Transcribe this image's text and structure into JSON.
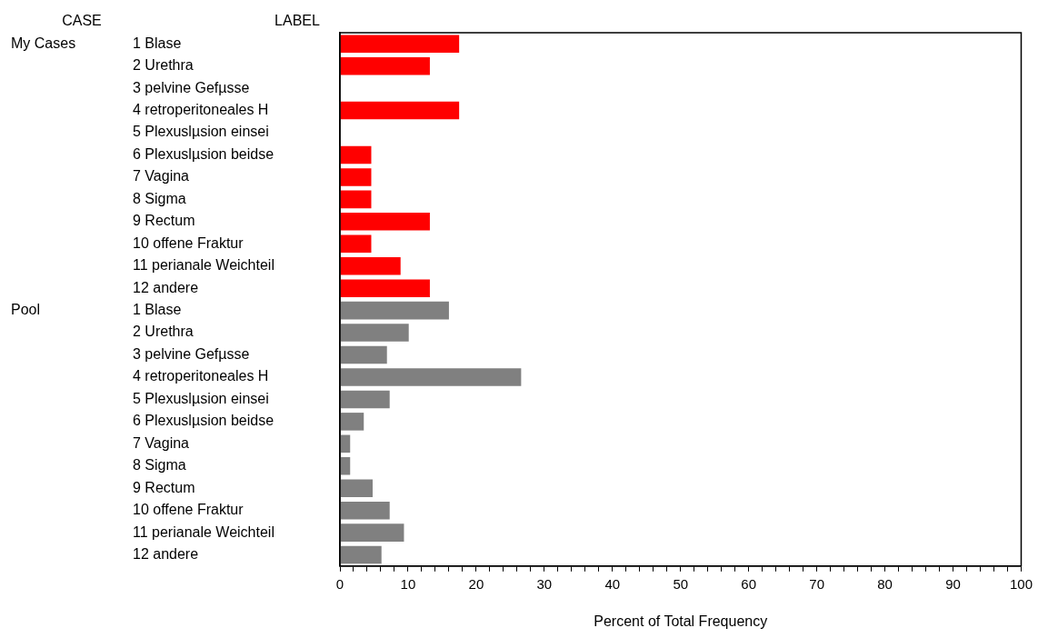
{
  "chart_data": {
    "type": "bar",
    "orientation": "horizontal",
    "xlabel": "Percent of Total Frequency",
    "ylabel": "LABEL",
    "legend_title": "CASE",
    "categories": [
      "1 Blase",
      "2 Urethra",
      "3 pelvine Gefµsse",
      "4 retroperitoneales H",
      "5 Plexuslµsion einsei",
      "6 Plexuslµsion beidse",
      "7 Vagina",
      "8 Sigma",
      "9 Rectum",
      "10 offene Fraktur",
      "11 perianale Weichteil",
      "12 andere",
      "1 Blase",
      "2 Urethra",
      "3 pelvine Gefµsse",
      "4 retroperitoneales H",
      "5 Plexuslµsion einsei",
      "6 Plexuslµsion beidse",
      "7 Vagina",
      "8 Sigma",
      "9 Rectum",
      "10 offene Fraktur",
      "11 perianale Weichteil",
      "12 andere"
    ],
    "series": [
      {
        "color": "#ff0000",
        "values": [
          17.5,
          13.2,
          0,
          17.5,
          0,
          4.6,
          4.6,
          4.6,
          13.2,
          4.6,
          8.9,
          13.2,
          null,
          null,
          null,
          null,
          null,
          null,
          null,
          null,
          null,
          null,
          null,
          null
        ]
      },
      {
        "color": "#808080",
        "values": [
          null,
          null,
          null,
          null,
          null,
          null,
          null,
          null,
          null,
          null,
          null,
          null,
          16.0,
          10.1,
          6.9,
          26.6,
          7.3,
          3.5,
          1.5,
          1.5,
          4.8,
          7.3,
          9.4,
          6.1
        ]
      }
    ],
    "xlim": [
      0,
      100
    ],
    "xticks": [
      0,
      {
        "value": 2,
        "label": null
      },
      {
        "value": 4,
        "label": null
      },
      {
        "value": 6,
        "label": null
      },
      {
        "value": 8,
        "label": null
      },
      10,
      {
        "value": 12,
        "label": null
      },
      {
        "value": 14,
        "label": null
      },
      {
        "value": 16,
        "label": null
      },
      {
        "value": 18,
        "label": null
      },
      20,
      {
        "value": 22,
        "label": null
      },
      {
        "value": 24,
        "label": null
      },
      {
        "value": 26,
        "label": null
      },
      {
        "value": 28,
        "label": null
      },
      30,
      {
        "value": 32,
        "label": null
      },
      {
        "value": 34,
        "label": null
      },
      {
        "value": 36,
        "label": null
      },
      {
        "value": 38,
        "label": null
      },
      40,
      {
        "value": 42,
        "label": null
      },
      {
        "value": 44,
        "label": null
      },
      {
        "value": 46,
        "label": null
      },
      {
        "value": 48,
        "label": null
      },
      50,
      {
        "value": 52,
        "label": null
      },
      {
        "value": 54,
        "label": null
      },
      {
        "value": 56,
        "label": null
      },
      {
        "value": 58,
        "label": null
      },
      60,
      {
        "value": 62,
        "label": null
      },
      {
        "value": 64,
        "label": null
      },
      {
        "value": 66,
        "label": null
      },
      {
        "value": 68,
        "label": null
      },
      70,
      {
        "value": 72,
        "label": null
      },
      {
        "value": 74,
        "label": null
      },
      {
        "value": 76,
        "label": null
      },
      {
        "value": 78,
        "label": null
      },
      80,
      {
        "value": 82,
        "label": null
      },
      {
        "value": 84,
        "label": null
      },
      {
        "value": 86,
        "label": null
      },
      {
        "value": 88,
        "label": null
      },
      90,
      {
        "value": 92,
        "label": null
      },
      {
        "value": 94,
        "label": null
      },
      {
        "value": 96,
        "label": null
      },
      {
        "value": 98,
        "label": null
      },
      100
    ],
    "annotations": [
      "My Cases",
      "Pool"
    ],
    "grid": false,
    "legend": false
  }
}
